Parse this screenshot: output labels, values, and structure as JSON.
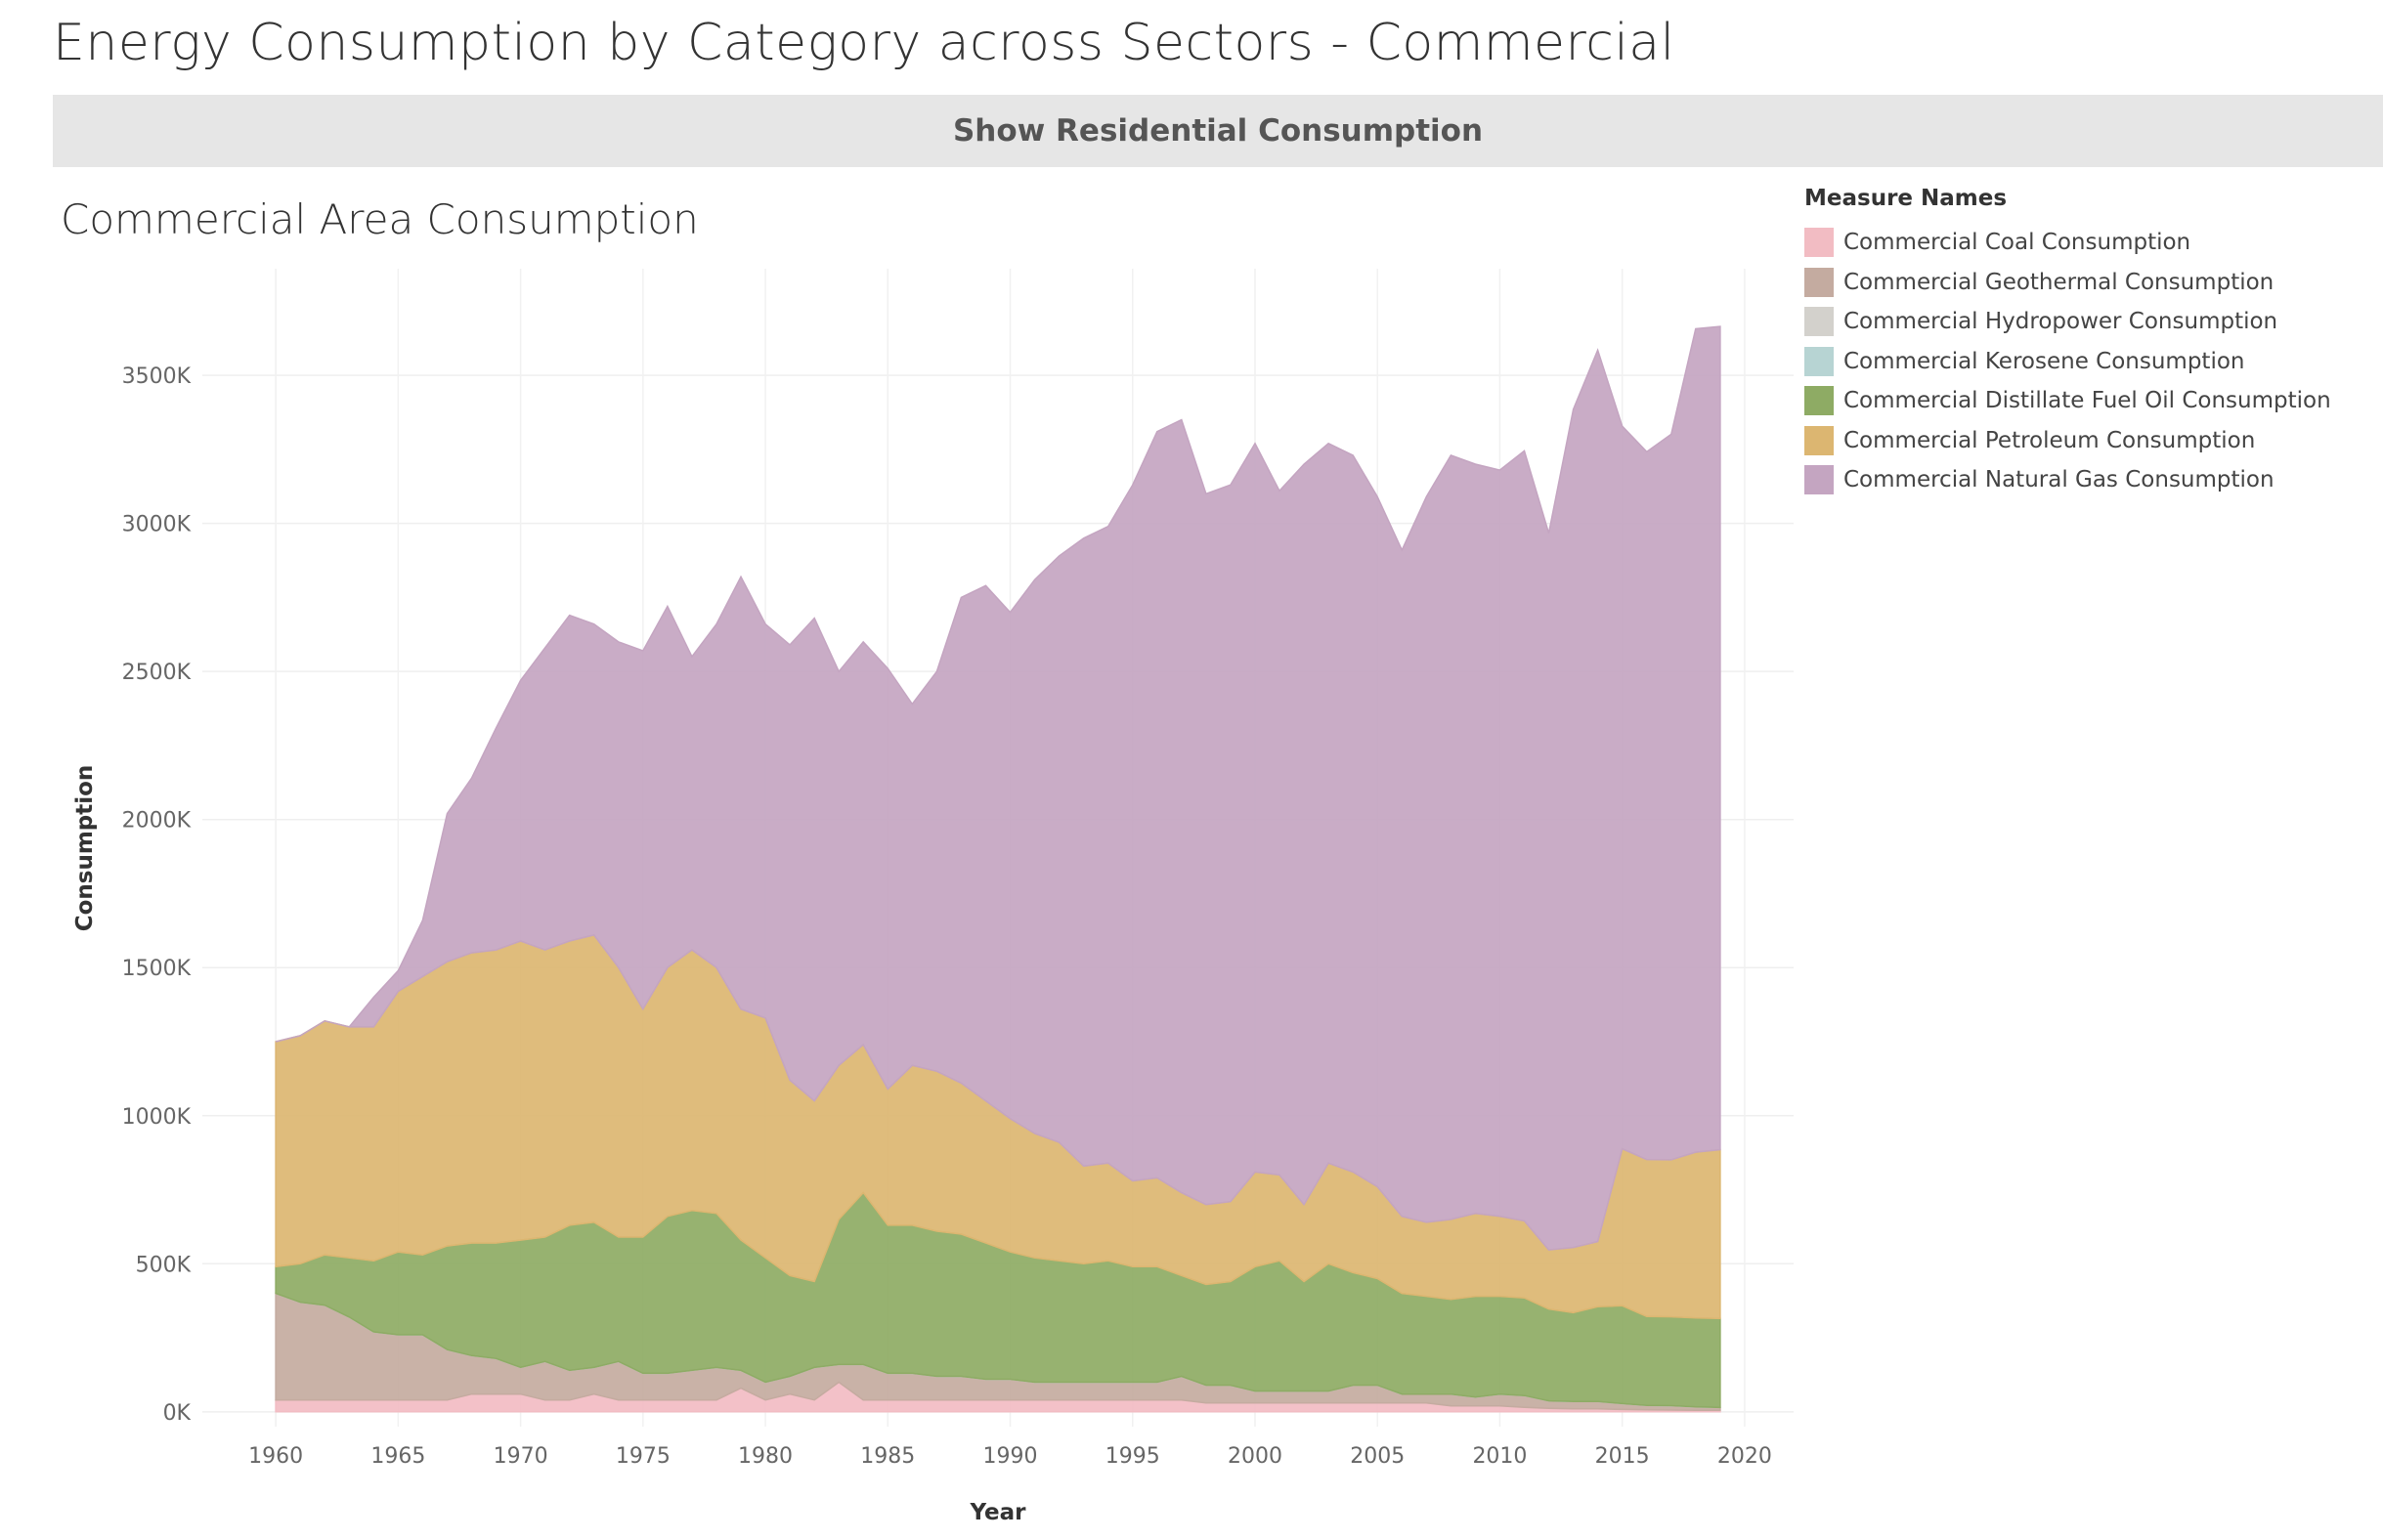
{
  "page": {
    "title": "Energy Consumption by Category across Sectors - Commercial",
    "toggle_button": "Show Residential Consumption"
  },
  "chart_data": {
    "type": "area",
    "stacked": true,
    "title": "Commercial Area Consumption",
    "xlabel": "Year",
    "ylabel": "Consumption",
    "legend_title": "Measure Names",
    "legend_position": "right",
    "grid": true,
    "xlim": [
      1957,
      2022
    ],
    "ylim": [
      -50000,
      3860000
    ],
    "x_ticks": [
      1960,
      1965,
      1970,
      1975,
      1980,
      1985,
      1990,
      1995,
      2000,
      2005,
      2010,
      2015,
      2020
    ],
    "y_ticks": [
      0,
      500000,
      1000000,
      1500000,
      2000000,
      2500000,
      3000000,
      3500000
    ],
    "y_tick_labels": [
      "0K",
      "500K",
      "1000K",
      "1500K",
      "2000K",
      "2500K",
      "3000K",
      "3500K"
    ],
    "x_tick_labels": [
      "1960",
      "1965",
      "1970",
      "1975",
      "1980",
      "1985",
      "1990",
      "1995",
      "2000",
      "2005",
      "2010",
      "2015",
      "2020"
    ],
    "x": [
      1960,
      1961,
      1962,
      1963,
      1964,
      1965,
      1966,
      1967,
      1968,
      1969,
      1970,
      1971,
      1972,
      1973,
      1974,
      1975,
      1976,
      1977,
      1978,
      1979,
      1980,
      1981,
      1982,
      1983,
      1984,
      1985,
      1986,
      1987,
      1988,
      1989,
      1990,
      1991,
      1992,
      1993,
      1994,
      1995,
      1996,
      1997,
      1998,
      1999,
      2000,
      2001,
      2002,
      2003,
      2004,
      2005,
      2006,
      2007,
      2008,
      2009,
      2010,
      2011,
      2012,
      2013,
      2014,
      2015,
      2016,
      2017,
      2018,
      2019
    ],
    "series": [
      {
        "name": "Commercial Coal Consumption",
        "color": "#f2bcc3",
        "values": [
          40000,
          40000,
          40000,
          40000,
          40000,
          40000,
          40000,
          40000,
          60000,
          60000,
          60000,
          40000,
          40000,
          60000,
          40000,
          40000,
          40000,
          40000,
          40000,
          80000,
          40000,
          60000,
          40000,
          100000,
          40000,
          40000,
          40000,
          40000,
          40000,
          40000,
          40000,
          40000,
          40000,
          40000,
          40000,
          40000,
          40000,
          40000,
          30000,
          30000,
          30000,
          30000,
          30000,
          30000,
          30000,
          30000,
          30000,
          30000,
          20000,
          20000,
          20000,
          15000,
          12000,
          10000,
          10000,
          8000,
          7000,
          6000,
          5000,
          5000
        ]
      },
      {
        "name": "Commercial Geothermal Consumption",
        "color": "#c4aba0",
        "values": [
          360000,
          330000,
          320000,
          280000,
          230000,
          220000,
          220000,
          170000,
          130000,
          120000,
          90000,
          130000,
          100000,
          90000,
          130000,
          90000,
          90000,
          100000,
          110000,
          60000,
          60000,
          60000,
          110000,
          60000,
          120000,
          90000,
          90000,
          80000,
          80000,
          70000,
          70000,
          60000,
          60000,
          60000,
          60000,
          60000,
          60000,
          80000,
          60000,
          60000,
          40000,
          40000,
          40000,
          40000,
          60000,
          60000,
          30000,
          30000,
          40000,
          30000,
          40000,
          40000,
          25000,
          25000,
          25000,
          20000,
          15000,
          15000,
          12000,
          10000
        ]
      },
      {
        "name": "Commercial Hydropower Consumption",
        "color": "#d3d1cc",
        "values": [
          0,
          0,
          0,
          0,
          0,
          0,
          0,
          0,
          0,
          0,
          0,
          0,
          0,
          0,
          0,
          0,
          0,
          0,
          0,
          0,
          0,
          0,
          0,
          0,
          0,
          0,
          0,
          0,
          0,
          0,
          0,
          0,
          0,
          0,
          0,
          0,
          0,
          0,
          0,
          0,
          0,
          0,
          0,
          0,
          0,
          0,
          0,
          0,
          0,
          0,
          0,
          0,
          0,
          0,
          0,
          0,
          0,
          0,
          0,
          0
        ]
      },
      {
        "name": "Commercial Kerosene Consumption",
        "color": "#b7d4d3",
        "values": [
          0,
          0,
          0,
          0,
          0,
          0,
          0,
          0,
          0,
          0,
          0,
          0,
          0,
          0,
          0,
          0,
          0,
          0,
          0,
          0,
          0,
          0,
          0,
          0,
          0,
          0,
          0,
          0,
          0,
          0,
          0,
          0,
          0,
          0,
          0,
          0,
          0,
          0,
          0,
          0,
          0,
          0,
          0,
          0,
          0,
          0,
          0,
          0,
          0,
          0,
          0,
          0,
          0,
          0,
          0,
          0,
          0,
          0,
          0,
          0
        ]
      },
      {
        "name": "Commercial Distillate Fuel Oil Consumption",
        "color": "#8eab64",
        "values": [
          90000,
          130000,
          170000,
          200000,
          240000,
          280000,
          270000,
          350000,
          380000,
          390000,
          430000,
          420000,
          490000,
          490000,
          420000,
          460000,
          530000,
          540000,
          520000,
          440000,
          420000,
          340000,
          290000,
          490000,
          580000,
          500000,
          500000,
          490000,
          480000,
          460000,
          430000,
          420000,
          410000,
          400000,
          410000,
          390000,
          390000,
          340000,
          340000,
          350000,
          420000,
          440000,
          370000,
          430000,
          380000,
          360000,
          340000,
          330000,
          320000,
          340000,
          330000,
          330000,
          310000,
          300000,
          320000,
          330000,
          300000,
          300000,
          300000,
          300000
        ]
      },
      {
        "name": "Commercial Petroleum Consumption",
        "color": "#dcb671",
        "values": [
          760000,
          770000,
          790000,
          780000,
          790000,
          880000,
          940000,
          960000,
          980000,
          990000,
          1010000,
          970000,
          960000,
          970000,
          910000,
          770000,
          840000,
          880000,
          830000,
          780000,
          810000,
          660000,
          610000,
          520000,
          500000,
          460000,
          540000,
          540000,
          510000,
          480000,
          450000,
          420000,
          400000,
          330000,
          330000,
          290000,
          300000,
          280000,
          270000,
          270000,
          320000,
          290000,
          260000,
          340000,
          340000,
          310000,
          260000,
          250000,
          270000,
          280000,
          270000,
          260000,
          200000,
          220000,
          220000,
          530000,
          530000,
          530000,
          560000,
          570000
        ]
      },
      {
        "name": "Commercial Natural Gas Consumption",
        "color": "#c4a5c1",
        "values": [
          0,
          0,
          0,
          0,
          100000,
          70000,
          190000,
          500000,
          590000,
          750000,
          880000,
          1020000,
          1100000,
          1050000,
          1100000,
          1210000,
          1220000,
          990000,
          1160000,
          1460000,
          1330000,
          1470000,
          1630000,
          1330000,
          1360000,
          1420000,
          1220000,
          1350000,
          1640000,
          1740000,
          1710000,
          1870000,
          1980000,
          2120000,
          2150000,
          2350000,
          2520000,
          2610000,
          2400000,
          2420000,
          2460000,
          2310000,
          2500000,
          2430000,
          2420000,
          2330000,
          2250000,
          2450000,
          2580000,
          2530000,
          2520000,
          2600000,
          2420000,
          2830000,
          3010000,
          2440000,
          2390000,
          2450000,
          2780000,
          2780000
        ]
      }
    ]
  }
}
